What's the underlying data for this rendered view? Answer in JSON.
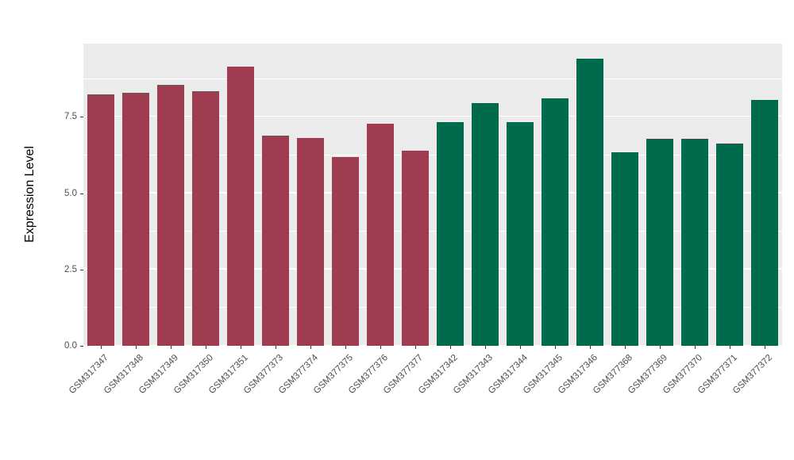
{
  "chart_data": {
    "type": "bar",
    "title": "",
    "xlabel": "",
    "ylabel": "Expression Level",
    "ylim": [
      0,
      9.9
    ],
    "yticks": [
      0.0,
      2.5,
      5.0,
      7.5
    ],
    "ytick_labels": [
      "0.0",
      "2.5",
      "5.0",
      "7.5"
    ],
    "minor_gridlines": [
      1.25,
      3.75,
      6.25,
      8.75
    ],
    "grid": "on",
    "legend": "none",
    "panel_background": "#EBEBEB",
    "categories": [
      "GSM317347",
      "GSM317348",
      "GSM317349",
      "GSM317350",
      "GSM317351",
      "GSM377373",
      "GSM377374",
      "GSM377375",
      "GSM377376",
      "GSM377377",
      "GSM317342",
      "GSM317343",
      "GSM317344",
      "GSM317345",
      "GSM317346",
      "GSM377368",
      "GSM377369",
      "GSM377370",
      "GSM377371",
      "GSM377372"
    ],
    "values": [
      8.23,
      8.28,
      8.55,
      8.33,
      9.15,
      6.88,
      6.82,
      6.18,
      7.27,
      6.38,
      7.33,
      7.95,
      7.33,
      8.1,
      9.4,
      6.33,
      6.77,
      6.78,
      6.62,
      8.05
    ],
    "groups": [
      "red",
      "red",
      "red",
      "red",
      "red",
      "red",
      "red",
      "red",
      "red",
      "red",
      "green",
      "green",
      "green",
      "green",
      "green",
      "green",
      "green",
      "green",
      "green",
      "green"
    ],
    "group_colors": {
      "red": "#9E3D50",
      "green": "#006B4C"
    }
  }
}
